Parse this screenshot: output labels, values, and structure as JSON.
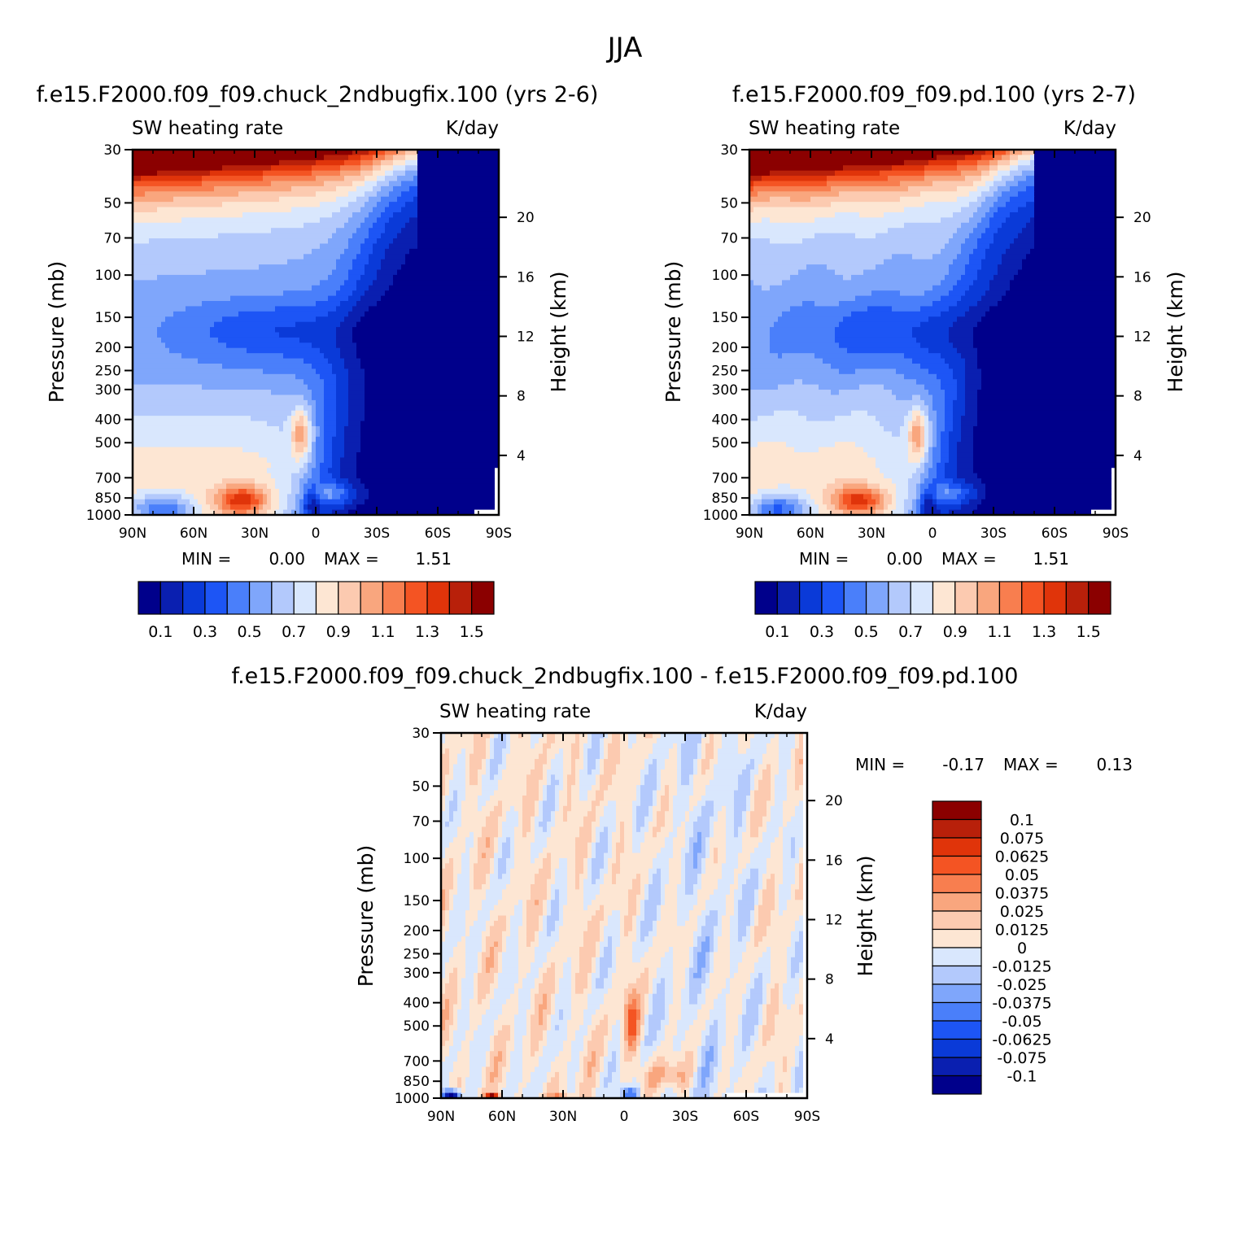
{
  "figure": {
    "title": "JJA"
  },
  "palette": {
    "blue_red": [
      "#00008b",
      "#0a1fb0",
      "#0a3ad8",
      "#1d55f5",
      "#4a7ffa",
      "#7fa6fb",
      "#b3c9fc",
      "#d9e7fd",
      "#fde6d3",
      "#fccab0",
      "#f9a67e",
      "#f87e4f",
      "#f45423",
      "#e0340a",
      "#b8200a",
      "#8b0000"
    ],
    "diff": [
      "#00008b",
      "#0a1fb0",
      "#0a3ad8",
      "#1d55f5",
      "#4a7ffa",
      "#7fa6fb",
      "#b3c9fc",
      "#d9e7fd",
      "#fde6d3",
      "#fccab0",
      "#f9a67e",
      "#f87e4f",
      "#f45423",
      "#e0340a",
      "#b8200a",
      "#8b0000"
    ]
  },
  "chart_data": [
    {
      "type": "heatmap",
      "title": "f.e15.F2000.f09_f09.chuck_2ndbugfix.100 (yrs 2-6)",
      "left_label": "SW heating rate",
      "right_label": "K/day",
      "ylabel": "Pressure (mb)",
      "ylabel_right": "Height (km)",
      "x_ticks": [
        "90N",
        "60N",
        "30N",
        "0",
        "30S",
        "60S",
        "90S"
      ],
      "y_ticks": [
        "30",
        "50",
        "70",
        "100",
        "150",
        "200",
        "250",
        "300",
        "400",
        "500",
        "700",
        "850",
        "1000"
      ],
      "y_ticks_right": [
        "20",
        "16",
        "12",
        "8",
        "4"
      ],
      "min_label": "MIN =",
      "min_value": "0.00",
      "max_label": "MAX =",
      "max_value": "1.51",
      "colorbar_labels": [
        "0.1",
        "0.3",
        "0.5",
        "0.7",
        "0.9",
        "1.1",
        "1.3",
        "1.5"
      ]
    },
    {
      "type": "heatmap",
      "title": "f.e15.F2000.f09_f09.pd.100 (yrs 2-7)",
      "left_label": "SW heating rate",
      "right_label": "K/day",
      "ylabel": "Pressure (mb)",
      "ylabel_right": "Height (km)",
      "x_ticks": [
        "90N",
        "60N",
        "30N",
        "0",
        "30S",
        "60S",
        "90S"
      ],
      "y_ticks": [
        "30",
        "50",
        "70",
        "100",
        "150",
        "200",
        "250",
        "300",
        "400",
        "500",
        "700",
        "850",
        "1000"
      ],
      "y_ticks_right": [
        "20",
        "16",
        "12",
        "8",
        "4"
      ],
      "min_label": "MIN =",
      "min_value": "0.00",
      "max_label": "MAX =",
      "max_value": "1.51",
      "colorbar_labels": [
        "0.1",
        "0.3",
        "0.5",
        "0.7",
        "0.9",
        "1.1",
        "1.3",
        "1.5"
      ]
    },
    {
      "type": "heatmap",
      "title": "f.e15.F2000.f09_f09.chuck_2ndbugfix.100 - f.e15.F2000.f09_f09.pd.100",
      "left_label": "SW heating rate",
      "right_label": "K/day",
      "ylabel": "Pressure (mb)",
      "ylabel_right": "Height (km)",
      "x_ticks": [
        "90N",
        "60N",
        "30N",
        "0",
        "30S",
        "60S",
        "90S"
      ],
      "y_ticks": [
        "30",
        "50",
        "70",
        "100",
        "150",
        "200",
        "250",
        "300",
        "400",
        "500",
        "700",
        "850",
        "1000"
      ],
      "y_ticks_right": [
        "20",
        "16",
        "12",
        "8",
        "4"
      ],
      "min_label": "MIN =",
      "min_value": "-0.17",
      "max_label": "MAX =",
      "max_value": "0.13",
      "colorbar_labels": [
        "0.1",
        "0.075",
        "0.0625",
        "0.05",
        "0.0375",
        "0.025",
        "0.0125",
        "0",
        "-0.0125",
        "-0.025",
        "-0.0375",
        "-0.05",
        "-0.0625",
        "-0.075",
        "-0.1"
      ]
    }
  ]
}
